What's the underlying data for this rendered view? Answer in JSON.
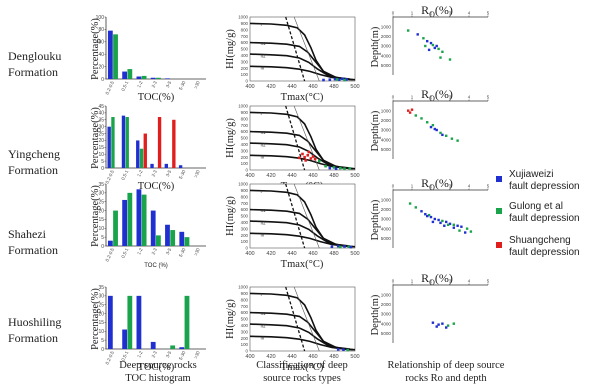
{
  "formations": [
    "Denglouku\nFormation",
    "Yingcheng\nFormation",
    "Shahezi\nFormation",
    "Huoshiling\nFormation"
  ],
  "captions": {
    "toc": "Deep source rocks\nTOC histogram",
    "hi": "Classification of deep\nsource rocks types",
    "ro": "Relationship of deep source\nrocks Ro and depth"
  },
  "colors": {
    "blue": "#1f2fd0",
    "green": "#19a34a",
    "red": "#e01e1e"
  },
  "legend": [
    {
      "label": "Xujiaweizi\nfault depression",
      "color": "#1f2fd0"
    },
    {
      "label": "Gulong et al\nfault depression",
      "color": "#19a34a"
    },
    {
      "label": "Shuangcheng\nfault depression",
      "color": "#e01e1e"
    }
  ],
  "chart_data": [
    {
      "type": "bar",
      "panel": "toc",
      "ylabel": "Percentage(%)",
      "xlabels": [
        "TOC(%)",
        "TOC(%)",
        "TOC (%)",
        "TOC(%)"
      ],
      "categories": [
        "0.2-0.5",
        "0.5-1",
        "1-2",
        "2-3",
        "3-5",
        "5-30",
        ">30"
      ],
      "rows": [
        {
          "ylim": [
            0,
            100
          ],
          "yticks": [
            0,
            20,
            40,
            60,
            80,
            100
          ],
          "series": [
            {
              "color": "blue",
              "values": [
                78,
                12,
                4,
                2,
                1,
                0,
                0
              ]
            },
            {
              "color": "green",
              "values": [
                72,
                16,
                5,
                2,
                0,
                0,
                0
              ]
            }
          ]
        },
        {
          "ylim": [
            0,
            45
          ],
          "yticks": [
            0,
            5,
            10,
            15,
            20,
            25,
            30,
            35,
            40,
            45
          ],
          "series": [
            {
              "color": "blue",
              "values": [
                30,
                38,
                20,
                3,
                3,
                2,
                0
              ]
            },
            {
              "color": "green",
              "values": [
                37,
                37,
                14,
                0,
                0,
                0,
                0
              ]
            },
            {
              "color": "red",
              "values": [
                0,
                0,
                25,
                37,
                35,
                0,
                0
              ]
            }
          ]
        },
        {
          "ylim": [
            0,
            35
          ],
          "yticks": [
            0,
            5,
            10,
            15,
            20,
            25,
            30,
            35
          ],
          "series": [
            {
              "color": "blue",
              "values": [
                3,
                26,
                32,
                20,
                12,
                8,
                0
              ]
            },
            {
              "color": "green",
              "values": [
                20,
                30,
                29,
                6,
                9,
                5,
                0
              ]
            }
          ]
        },
        {
          "ylim": [
            0,
            35
          ],
          "yticks": [
            0,
            5,
            10,
            15,
            20,
            25,
            30,
            35
          ],
          "series": [
            {
              "color": "blue",
              "values": [
                30,
                11,
                30,
                4,
                0,
                1,
                0
              ]
            },
            {
              "color": "green",
              "values": [
                0,
                30,
                0,
                0,
                2,
                30,
                0
              ]
            }
          ]
        }
      ]
    },
    {
      "type": "scatter",
      "panel": "hi",
      "xlabel": "Tmax(°C)",
      "ylabel": "HI(mg/g)",
      "xlim": [
        400,
        500
      ],
      "ylim": [
        0,
        1000
      ],
      "xticks": [
        400,
        420,
        440,
        460,
        480,
        500
      ],
      "yticks": [
        0,
        100,
        200,
        300,
        400,
        500,
        600,
        700,
        800,
        900,
        1000
      ],
      "type_labels": [
        {
          "text": "I",
          "x": 410,
          "y": 860
        },
        {
          "text": "II1",
          "x": 410,
          "y": 560
        },
        {
          "text": "II2",
          "x": 410,
          "y": 370
        },
        {
          "text": "III",
          "x": 410,
          "y": 180
        }
      ],
      "rows": [
        {
          "points": [
            {
              "c": "blue",
              "x": 481,
              "y": 30
            },
            {
              "c": "blue",
              "x": 485,
              "y": 20
            },
            {
              "c": "blue",
              "x": 488,
              "y": 35
            },
            {
              "c": "green",
              "x": 483,
              "y": 25
            },
            {
              "c": "blue",
              "x": 492,
              "y": 25
            },
            {
              "c": "green",
              "x": 490,
              "y": 15
            },
            {
              "c": "blue",
              "x": 470,
              "y": 15
            },
            {
              "c": "blue",
              "x": 476,
              "y": 20
            }
          ]
        },
        {
          "points": [
            {
              "c": "red",
              "x": 452,
              "y": 200
            },
            {
              "c": "red",
              "x": 455,
              "y": 230
            },
            {
              "c": "red",
              "x": 458,
              "y": 180
            },
            {
              "c": "red",
              "x": 450,
              "y": 250
            },
            {
              "c": "red",
              "x": 456,
              "y": 280
            },
            {
              "c": "red",
              "x": 460,
              "y": 210
            },
            {
              "c": "red",
              "x": 453,
              "y": 150
            },
            {
              "c": "red",
              "x": 462,
              "y": 170
            },
            {
              "c": "red",
              "x": 447,
              "y": 190
            },
            {
              "c": "green",
              "x": 466,
              "y": 140
            },
            {
              "c": "green",
              "x": 472,
              "y": 60
            },
            {
              "c": "green",
              "x": 480,
              "y": 40
            },
            {
              "c": "green",
              "x": 486,
              "y": 30
            },
            {
              "c": "blue",
              "x": 476,
              "y": 30
            },
            {
              "c": "blue",
              "x": 482,
              "y": 20
            },
            {
              "c": "green",
              "x": 490,
              "y": 20
            },
            {
              "c": "green",
              "x": 495,
              "y": 25
            }
          ]
        },
        {
          "points": [
            {
              "c": "blue",
              "x": 478,
              "y": 20
            },
            {
              "c": "blue",
              "x": 484,
              "y": 30
            },
            {
              "c": "blue",
              "x": 490,
              "y": 25
            },
            {
              "c": "green",
              "x": 486,
              "y": 15
            },
            {
              "c": "green",
              "x": 494,
              "y": 20
            },
            {
              "c": "blue",
              "x": 496,
              "y": 15
            }
          ]
        },
        {
          "points": [
            {
              "c": "blue",
              "x": 484,
              "y": 25
            },
            {
              "c": "blue",
              "x": 489,
              "y": 20
            },
            {
              "c": "green",
              "x": 493,
              "y": 15
            }
          ]
        }
      ]
    },
    {
      "type": "scatter",
      "panel": "ro",
      "xlabel": "Ro(%)",
      "ylabel": "Depth(m)",
      "xlim": [
        0,
        5
      ],
      "ylim": [
        6000,
        0
      ],
      "xticks": [
        0,
        1,
        2,
        3,
        4,
        5
      ],
      "yticks": [
        1000,
        2000,
        3000,
        4000,
        5000
      ],
      "rows": [
        {
          "points": [
            {
              "c": "green",
              "x": 0.8,
              "y": 1400
            },
            {
              "c": "blue",
              "x": 1.3,
              "y": 1800
            },
            {
              "c": "green",
              "x": 1.6,
              "y": 2200
            },
            {
              "c": "blue",
              "x": 1.8,
              "y": 2500
            },
            {
              "c": "blue",
              "x": 2.0,
              "y": 2700
            },
            {
              "c": "green",
              "x": 2.1,
              "y": 2900
            },
            {
              "c": "blue",
              "x": 2.3,
              "y": 3000
            },
            {
              "c": "green",
              "x": 2.4,
              "y": 3300
            },
            {
              "c": "blue",
              "x": 2.2,
              "y": 3200
            },
            {
              "c": "green",
              "x": 2.6,
              "y": 3600
            },
            {
              "c": "green",
              "x": 2.5,
              "y": 4200
            },
            {
              "c": "green",
              "x": 3.0,
              "y": 4400
            },
            {
              "c": "blue",
              "x": 1.9,
              "y": 3400
            },
            {
              "c": "green",
              "x": 1.7,
              "y": 3000
            }
          ]
        },
        {
          "points": [
            {
              "c": "red",
              "x": 0.8,
              "y": 1000
            },
            {
              "c": "red",
              "x": 0.9,
              "y": 1200
            },
            {
              "c": "red",
              "x": 1.0,
              "y": 900
            },
            {
              "c": "green",
              "x": 1.2,
              "y": 1500
            },
            {
              "c": "green",
              "x": 1.5,
              "y": 1800
            },
            {
              "c": "green",
              "x": 1.8,
              "y": 2200
            },
            {
              "c": "green",
              "x": 2.1,
              "y": 2500
            },
            {
              "c": "blue",
              "x": 2.0,
              "y": 2700
            },
            {
              "c": "blue",
              "x": 2.3,
              "y": 3000
            },
            {
              "c": "green",
              "x": 2.5,
              "y": 3300
            },
            {
              "c": "green",
              "x": 2.8,
              "y": 3600
            },
            {
              "c": "green",
              "x": 3.1,
              "y": 3900
            },
            {
              "c": "blue",
              "x": 2.6,
              "y": 3500
            },
            {
              "c": "green",
              "x": 3.4,
              "y": 4100
            },
            {
              "c": "blue",
              "x": 2.2,
              "y": 2900
            }
          ]
        },
        {
          "points": [
            {
              "c": "green",
              "x": 0.9,
              "y": 1400
            },
            {
              "c": "green",
              "x": 1.2,
              "y": 1800
            },
            {
              "c": "blue",
              "x": 1.5,
              "y": 2200
            },
            {
              "c": "blue",
              "x": 1.7,
              "y": 2500
            },
            {
              "c": "green",
              "x": 1.9,
              "y": 2600
            },
            {
              "c": "blue",
              "x": 2.0,
              "y": 2800
            },
            {
              "c": "blue",
              "x": 2.2,
              "y": 3000
            },
            {
              "c": "blue",
              "x": 2.4,
              "y": 3100
            },
            {
              "c": "green",
              "x": 2.6,
              "y": 3200
            },
            {
              "c": "blue",
              "x": 2.8,
              "y": 3300
            },
            {
              "c": "blue",
              "x": 3.0,
              "y": 3500
            },
            {
              "c": "green",
              "x": 3.2,
              "y": 3600
            },
            {
              "c": "blue",
              "x": 3.4,
              "y": 3700
            },
            {
              "c": "blue",
              "x": 3.6,
              "y": 3800
            },
            {
              "c": "green",
              "x": 3.9,
              "y": 4000
            },
            {
              "c": "blue",
              "x": 2.5,
              "y": 3400
            },
            {
              "c": "blue",
              "x": 1.8,
              "y": 2700
            },
            {
              "c": "green",
              "x": 2.9,
              "y": 3600
            },
            {
              "c": "blue",
              "x": 3.2,
              "y": 3900
            },
            {
              "c": "blue",
              "x": 2.1,
              "y": 3300
            },
            {
              "c": "green",
              "x": 3.5,
              "y": 4200
            },
            {
              "c": "blue",
              "x": 2.7,
              "y": 3700
            },
            {
              "c": "blue",
              "x": 3.8,
              "y": 4400
            },
            {
              "c": "green",
              "x": 4.1,
              "y": 4300
            }
          ]
        },
        {
          "points": [
            {
              "c": "blue",
              "x": 2.1,
              "y": 3900
            },
            {
              "c": "blue",
              "x": 2.4,
              "y": 4100
            },
            {
              "c": "blue",
              "x": 2.6,
              "y": 4000
            },
            {
              "c": "green",
              "x": 2.9,
              "y": 4200
            },
            {
              "c": "blue",
              "x": 2.3,
              "y": 4300
            },
            {
              "c": "green",
              "x": 3.2,
              "y": 4000
            },
            {
              "c": "blue",
              "x": 2.8,
              "y": 4400
            }
          ]
        }
      ]
    }
  ]
}
